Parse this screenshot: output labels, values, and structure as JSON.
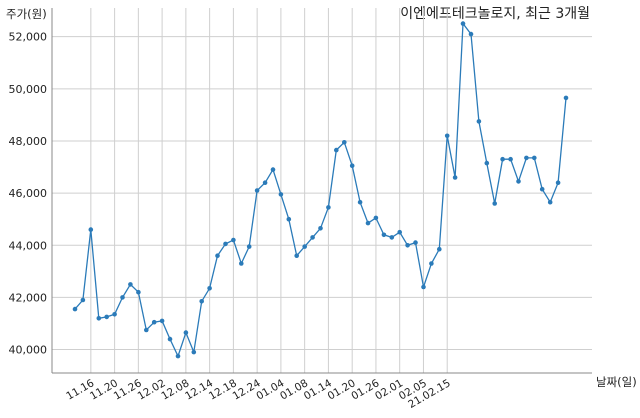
{
  "chart_data": {
    "type": "line",
    "title": "이엔에프테크놀로지, 최근 3개월",
    "ylabel": "주가(원)",
    "xlabel": "날짜(일)",
    "ylim": [
      39100,
      53100
    ],
    "y_ticks": [
      40000,
      42000,
      44000,
      46000,
      48000,
      50000,
      52000
    ],
    "y_tick_labels": [
      "40,000",
      "42,000",
      "44,000",
      "46,000",
      "48,000",
      "50,000",
      "52,000"
    ],
    "x_tick_labels": [
      "11.16",
      "11.20",
      "11.26",
      "12.02",
      "12.08",
      "12.14",
      "12.18",
      "12.24",
      "01.04",
      "01.08",
      "01.14",
      "01.20",
      "01.26",
      "02.01",
      "02.05",
      "21.02.15"
    ],
    "x_tick_index": [
      2,
      5,
      8,
      11,
      14,
      17,
      20,
      23,
      26,
      29,
      32,
      35,
      38,
      41,
      44,
      47
    ],
    "grid": true,
    "line_color": "#2b7bb9",
    "series": [
      {
        "values": [
          41550,
          41900,
          44600,
          41200,
          41250,
          41350,
          42000,
          42500,
          42200,
          40750,
          41050,
          41100,
          40400,
          39750,
          40650,
          39900,
          41850,
          42350,
          43600,
          44050,
          44200,
          43300,
          43950,
          46100,
          46400,
          46900,
          45950,
          45000,
          43600,
          43950,
          44300,
          44650,
          45450,
          47650,
          47950,
          47050,
          45650,
          44850,
          45050,
          44400,
          44300,
          44500,
          44000,
          44100,
          42400,
          43300,
          43850,
          48200,
          46600,
          52500,
          52100,
          48750,
          47150,
          45600,
          47300,
          47300,
          46450,
          47350,
          47350,
          46150,
          45650,
          46400,
          49650
        ]
      }
    ]
  }
}
